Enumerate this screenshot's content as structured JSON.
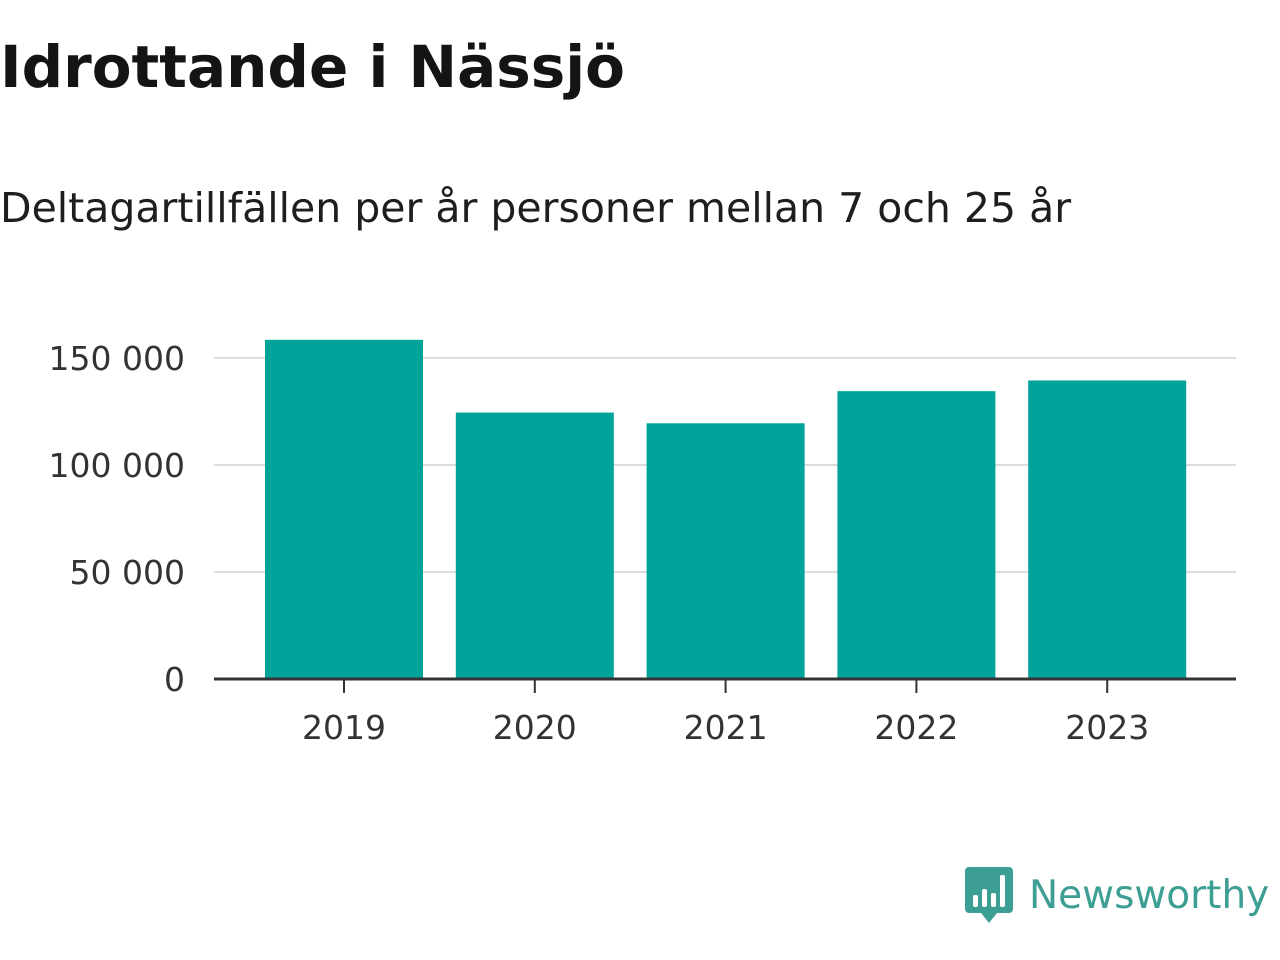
{
  "header": {
    "title": "Idrottande i Nässjö",
    "subtitle": "Deltagartillfällen per år personer mellan 7 och 25 år"
  },
  "brand": {
    "name": "Newsworthy",
    "color": "#3d9e93",
    "icon": "bar-chart-speech-bubble-icon"
  },
  "colors": {
    "bar": "#00a39a",
    "grid": "#dddddd",
    "axis": "#333333"
  },
  "chart_data": {
    "type": "bar",
    "title": "Idrottande i Nässjö",
    "subtitle": "Deltagartillfällen per år personer mellan 7 och 25 år",
    "categories": [
      "2019",
      "2020",
      "2021",
      "2022",
      "2023"
    ],
    "values": [
      158500,
      124500,
      119500,
      134500,
      139500
    ],
    "ylim": [
      0,
      150000
    ],
    "yticks": [
      0,
      50000,
      100000,
      150000
    ],
    "ytick_labels": [
      "0",
      "50 000",
      "100 000",
      "150 000"
    ],
    "grid": true,
    "legend": "none"
  }
}
